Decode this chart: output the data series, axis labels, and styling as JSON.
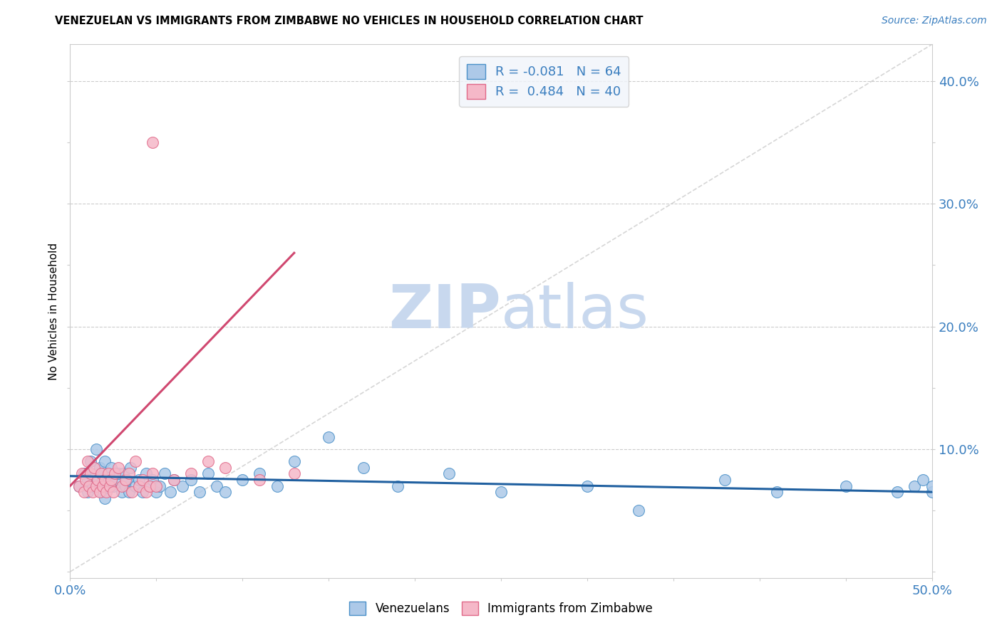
{
  "title": "VENEZUELAN VS IMMIGRANTS FROM ZIMBABWE NO VEHICLES IN HOUSEHOLD CORRELATION CHART",
  "source": "Source: ZipAtlas.com",
  "ylabel": "No Vehicles in Household",
  "xlim": [
    0.0,
    0.5
  ],
  "ylim": [
    -0.005,
    0.43
  ],
  "xticks": [
    0.0,
    0.05,
    0.1,
    0.15,
    0.2,
    0.25,
    0.3,
    0.35,
    0.4,
    0.45,
    0.5
  ],
  "yticks": [
    0.0,
    0.05,
    0.1,
    0.15,
    0.2,
    0.25,
    0.3,
    0.35,
    0.4
  ],
  "venezuelan_R": -0.081,
  "venezuelan_N": 64,
  "zimbabwe_R": 0.484,
  "zimbabwe_N": 40,
  "blue_fill": "#adc9e8",
  "pink_fill": "#f5b8c8",
  "blue_edge": "#4a90c8",
  "pink_edge": "#e06888",
  "blue_line": "#2060a0",
  "pink_line": "#d04870",
  "watermark_color": "#c8d8ee",
  "legend_bg": "#f0f4fa",
  "ven_x": [
    0.005,
    0.008,
    0.01,
    0.01,
    0.012,
    0.013,
    0.015,
    0.015,
    0.016,
    0.017,
    0.018,
    0.018,
    0.019,
    0.02,
    0.02,
    0.021,
    0.022,
    0.023,
    0.024,
    0.025,
    0.026,
    0.028,
    0.03,
    0.031,
    0.032,
    0.033,
    0.034,
    0.035,
    0.038,
    0.04,
    0.042,
    0.044,
    0.046,
    0.048,
    0.05,
    0.052,
    0.055,
    0.058,
    0.06,
    0.065,
    0.07,
    0.075,
    0.08,
    0.085,
    0.09,
    0.1,
    0.11,
    0.12,
    0.13,
    0.15,
    0.17,
    0.19,
    0.22,
    0.25,
    0.3,
    0.33,
    0.38,
    0.41,
    0.45,
    0.48,
    0.49,
    0.495,
    0.5,
    0.5
  ],
  "ven_y": [
    0.07,
    0.08,
    0.075,
    0.065,
    0.09,
    0.07,
    0.1,
    0.08,
    0.075,
    0.085,
    0.065,
    0.08,
    0.07,
    0.09,
    0.06,
    0.075,
    0.08,
    0.07,
    0.085,
    0.07,
    0.075,
    0.08,
    0.065,
    0.08,
    0.07,
    0.075,
    0.065,
    0.085,
    0.07,
    0.075,
    0.065,
    0.08,
    0.07,
    0.075,
    0.065,
    0.07,
    0.08,
    0.065,
    0.075,
    0.07,
    0.075,
    0.065,
    0.08,
    0.07,
    0.065,
    0.075,
    0.08,
    0.07,
    0.09,
    0.11,
    0.085,
    0.07,
    0.08,
    0.065,
    0.07,
    0.05,
    0.075,
    0.065,
    0.07,
    0.065,
    0.07,
    0.075,
    0.065,
    0.07
  ],
  "zim_x": [
    0.005,
    0.007,
    0.008,
    0.009,
    0.01,
    0.011,
    0.012,
    0.013,
    0.014,
    0.015,
    0.016,
    0.017,
    0.018,
    0.019,
    0.02,
    0.021,
    0.022,
    0.023,
    0.024,
    0.025,
    0.026,
    0.028,
    0.03,
    0.032,
    0.034,
    0.036,
    0.038,
    0.04,
    0.042,
    0.044,
    0.046,
    0.048,
    0.05,
    0.06,
    0.07,
    0.08,
    0.09,
    0.11,
    0.13,
    0.048
  ],
  "zim_y": [
    0.07,
    0.08,
    0.065,
    0.075,
    0.09,
    0.07,
    0.08,
    0.065,
    0.085,
    0.07,
    0.075,
    0.065,
    0.08,
    0.07,
    0.075,
    0.065,
    0.08,
    0.07,
    0.075,
    0.065,
    0.08,
    0.085,
    0.07,
    0.075,
    0.08,
    0.065,
    0.09,
    0.07,
    0.075,
    0.065,
    0.07,
    0.08,
    0.07,
    0.075,
    0.08,
    0.09,
    0.085,
    0.075,
    0.08,
    0.35
  ],
  "zim_line_x0": 0.0,
  "zim_line_y0": 0.07,
  "zim_line_x1": 0.13,
  "zim_line_y1": 0.26,
  "ven_line_x0": 0.0,
  "ven_line_y0": 0.078,
  "ven_line_x1": 0.5,
  "ven_line_y1": 0.065
}
